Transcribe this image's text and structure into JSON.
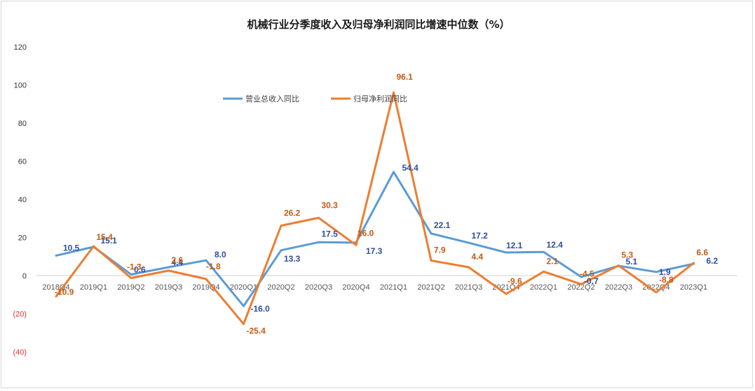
{
  "chart_data": {
    "type": "line",
    "title": "机械行业分季度收入及归母净利润同比增速中位数（%）",
    "categories": [
      "2018Q4",
      "2019Q1",
      "2019Q2",
      "2019Q3",
      "2019Q4",
      "2020Q1",
      "2020Q2",
      "2020Q3",
      "2020Q4",
      "2021Q1",
      "2021Q2",
      "2021Q3",
      "2021Q4",
      "2022Q1",
      "2022Q2",
      "2022Q3",
      "2022Q4",
      "2023Q1"
    ],
    "series": [
      {
        "name": "营业总收入同比",
        "color": "#5b9bd5",
        "label_color": "#2e4e9e",
        "values": [
          10.5,
          15.1,
          0.6,
          4.4,
          8.0,
          -16.0,
          13.3,
          17.5,
          17.3,
          54.4,
          22.1,
          17.2,
          12.1,
          12.4,
          -0.7,
          5.1,
          1.9,
          6.2
        ],
        "labels": [
          "10.5",
          "15.1",
          "0.6",
          "4.4",
          "8.0",
          "-16.0",
          "13.3",
          "17.5",
          "17.3",
          "54.4",
          "22.1",
          "17.2",
          "12.1",
          "12.4",
          "-0.7",
          "5.1",
          "1.9",
          "6.2"
        ]
      },
      {
        "name": "归母净利润同比",
        "color": "#ed7d31",
        "label_color": "#c55a11",
        "values": [
          -10.9,
          15.4,
          -1.3,
          2.6,
          -1.8,
          -25.4,
          26.2,
          30.3,
          16.0,
          96.1,
          7.9,
          4.4,
          -9.6,
          2.1,
          -4.5,
          5.3,
          -8.8,
          6.6
        ],
        "labels": [
          "-10.9",
          "15.4",
          "-1.3",
          "2.6",
          "-1.8",
          "-25.4",
          "26.2",
          "30.3",
          "16.0",
          "96.1",
          "7.9",
          "4.4",
          "-9.6",
          "2.1",
          "-4.5",
          "5.3",
          "-8.8",
          "6.6"
        ]
      }
    ],
    "ylim": [
      -40,
      120
    ],
    "yticks": [
      120,
      100,
      80,
      60,
      40,
      20,
      0,
      -20,
      -40
    ],
    "ytick_labels": [
      "120",
      "100",
      "80",
      "60",
      "40",
      "20",
      "0",
      "(20)",
      "(40)"
    ],
    "xlabel": "",
    "ylabel": "",
    "legend_position": "top-center"
  }
}
